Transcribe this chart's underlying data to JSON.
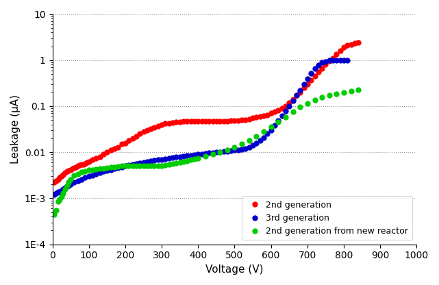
{
  "title": "",
  "xlabel": "Voltage (V)",
  "ylabel": "Leakage (μA)",
  "xlim": [
    0,
    1000
  ],
  "ylim_log": [
    0.0001,
    10
  ],
  "legend_labels": [
    "2nd generation",
    "3rd generation",
    "2nd generation from new reactor"
  ],
  "colors": [
    "#ff0000",
    "#0000cc",
    "#00cc00"
  ],
  "marker_size": 5,
  "grid_color": "#999999",
  "background_color": "#ffffff",
  "red_x": [
    5,
    10,
    15,
    20,
    25,
    30,
    35,
    40,
    45,
    50,
    55,
    60,
    65,
    70,
    75,
    80,
    85,
    90,
    95,
    100,
    110,
    120,
    130,
    140,
    150,
    160,
    170,
    180,
    190,
    200,
    210,
    220,
    230,
    240,
    250,
    260,
    270,
    280,
    290,
    300,
    310,
    320,
    330,
    340,
    350,
    360,
    370,
    380,
    390,
    400,
    410,
    420,
    430,
    440,
    450,
    460,
    470,
    480,
    490,
    500,
    510,
    520,
    530,
    540,
    550,
    560,
    570,
    580,
    590,
    600,
    610,
    620,
    630,
    640,
    650,
    660,
    670,
    680,
    690,
    700,
    710,
    720,
    730,
    740,
    750,
    760,
    770,
    780,
    790,
    800,
    810,
    820,
    830,
    840
  ],
  "red_y": [
    0.0022,
    0.0024,
    0.0026,
    0.0028,
    0.003,
    0.0033,
    0.0036,
    0.0038,
    0.004,
    0.0042,
    0.0044,
    0.0046,
    0.0048,
    0.005,
    0.0052,
    0.0054,
    0.0055,
    0.0057,
    0.006,
    0.0063,
    0.007,
    0.0075,
    0.008,
    0.009,
    0.01,
    0.011,
    0.012,
    0.013,
    0.015,
    0.016,
    0.018,
    0.02,
    0.022,
    0.025,
    0.028,
    0.03,
    0.032,
    0.035,
    0.037,
    0.04,
    0.042,
    0.043,
    0.044,
    0.045,
    0.046,
    0.047,
    0.047,
    0.047,
    0.047,
    0.047,
    0.047,
    0.047,
    0.047,
    0.047,
    0.047,
    0.047,
    0.047,
    0.047,
    0.048,
    0.048,
    0.049,
    0.05,
    0.051,
    0.053,
    0.055,
    0.057,
    0.059,
    0.062,
    0.065,
    0.07,
    0.075,
    0.082,
    0.09,
    0.1,
    0.12,
    0.14,
    0.17,
    0.2,
    0.25,
    0.3,
    0.37,
    0.45,
    0.55,
    0.65,
    0.8,
    0.95,
    1.1,
    1.35,
    1.6,
    1.9,
    2.1,
    2.2,
    2.3,
    2.4
  ],
  "blue_x": [
    5,
    10,
    15,
    20,
    25,
    30,
    35,
    40,
    45,
    50,
    60,
    70,
    80,
    90,
    100,
    110,
    120,
    130,
    140,
    150,
    160,
    170,
    180,
    190,
    200,
    210,
    220,
    230,
    240,
    250,
    260,
    270,
    280,
    290,
    300,
    310,
    320,
    330,
    340,
    350,
    360,
    370,
    380,
    390,
    400,
    410,
    420,
    430,
    440,
    450,
    460,
    470,
    480,
    490,
    500,
    510,
    520,
    530,
    540,
    550,
    560,
    570,
    580,
    590,
    600,
    610,
    620,
    630,
    640,
    650,
    660,
    670,
    680,
    690,
    700,
    710,
    720,
    730,
    740,
    750,
    760,
    770,
    780,
    790,
    800,
    810
  ],
  "blue_y": [
    0.0012,
    0.0013,
    0.0014,
    0.0014,
    0.0015,
    0.0016,
    0.0017,
    0.0018,
    0.0019,
    0.002,
    0.0022,
    0.0024,
    0.0026,
    0.0028,
    0.003,
    0.0032,
    0.0034,
    0.0036,
    0.0038,
    0.004,
    0.0042,
    0.0044,
    0.0046,
    0.0048,
    0.005,
    0.0052,
    0.0054,
    0.0056,
    0.0058,
    0.006,
    0.0062,
    0.0064,
    0.0066,
    0.0068,
    0.007,
    0.0072,
    0.0074,
    0.0076,
    0.0078,
    0.008,
    0.0082,
    0.0084,
    0.0086,
    0.0088,
    0.009,
    0.0092,
    0.0094,
    0.0096,
    0.0098,
    0.01,
    0.0102,
    0.0104,
    0.0106,
    0.0108,
    0.011,
    0.0112,
    0.0115,
    0.012,
    0.013,
    0.014,
    0.016,
    0.018,
    0.021,
    0.025,
    0.03,
    0.038,
    0.048,
    0.062,
    0.08,
    0.1,
    0.13,
    0.17,
    0.22,
    0.3,
    0.4,
    0.52,
    0.65,
    0.78,
    0.88,
    0.94,
    0.98,
    1.0,
    0.98,
    0.99,
    0.98,
    1.0
  ],
  "green_x": [
    5,
    10,
    15,
    20,
    25,
    30,
    35,
    40,
    45,
    50,
    60,
    70,
    80,
    90,
    100,
    110,
    120,
    130,
    140,
    150,
    160,
    170,
    180,
    190,
    200,
    210,
    220,
    230,
    240,
    250,
    260,
    270,
    280,
    290,
    300,
    310,
    320,
    330,
    340,
    350,
    360,
    370,
    380,
    390,
    400,
    420,
    440,
    460,
    480,
    500,
    520,
    540,
    560,
    580,
    600,
    620,
    640,
    660,
    680,
    700,
    720,
    740,
    760,
    780,
    800,
    820,
    840
  ],
  "green_y": [
    0.00045,
    0.00055,
    0.00085,
    0.00095,
    0.0011,
    0.0013,
    0.0016,
    0.0019,
    0.0022,
    0.0026,
    0.0032,
    0.0034,
    0.0037,
    0.0039,
    0.0041,
    0.0042,
    0.0043,
    0.0044,
    0.0045,
    0.0046,
    0.0047,
    0.0048,
    0.0049,
    0.005,
    0.005,
    0.005,
    0.005,
    0.005,
    0.005,
    0.005,
    0.005,
    0.005,
    0.005,
    0.005,
    0.005,
    0.0052,
    0.0054,
    0.0056,
    0.0058,
    0.006,
    0.0062,
    0.0065,
    0.0068,
    0.0071,
    0.0075,
    0.0082,
    0.009,
    0.01,
    0.011,
    0.013,
    0.015,
    0.018,
    0.022,
    0.028,
    0.036,
    0.046,
    0.058,
    0.075,
    0.095,
    0.115,
    0.135,
    0.155,
    0.17,
    0.185,
    0.2,
    0.215,
    0.225
  ]
}
